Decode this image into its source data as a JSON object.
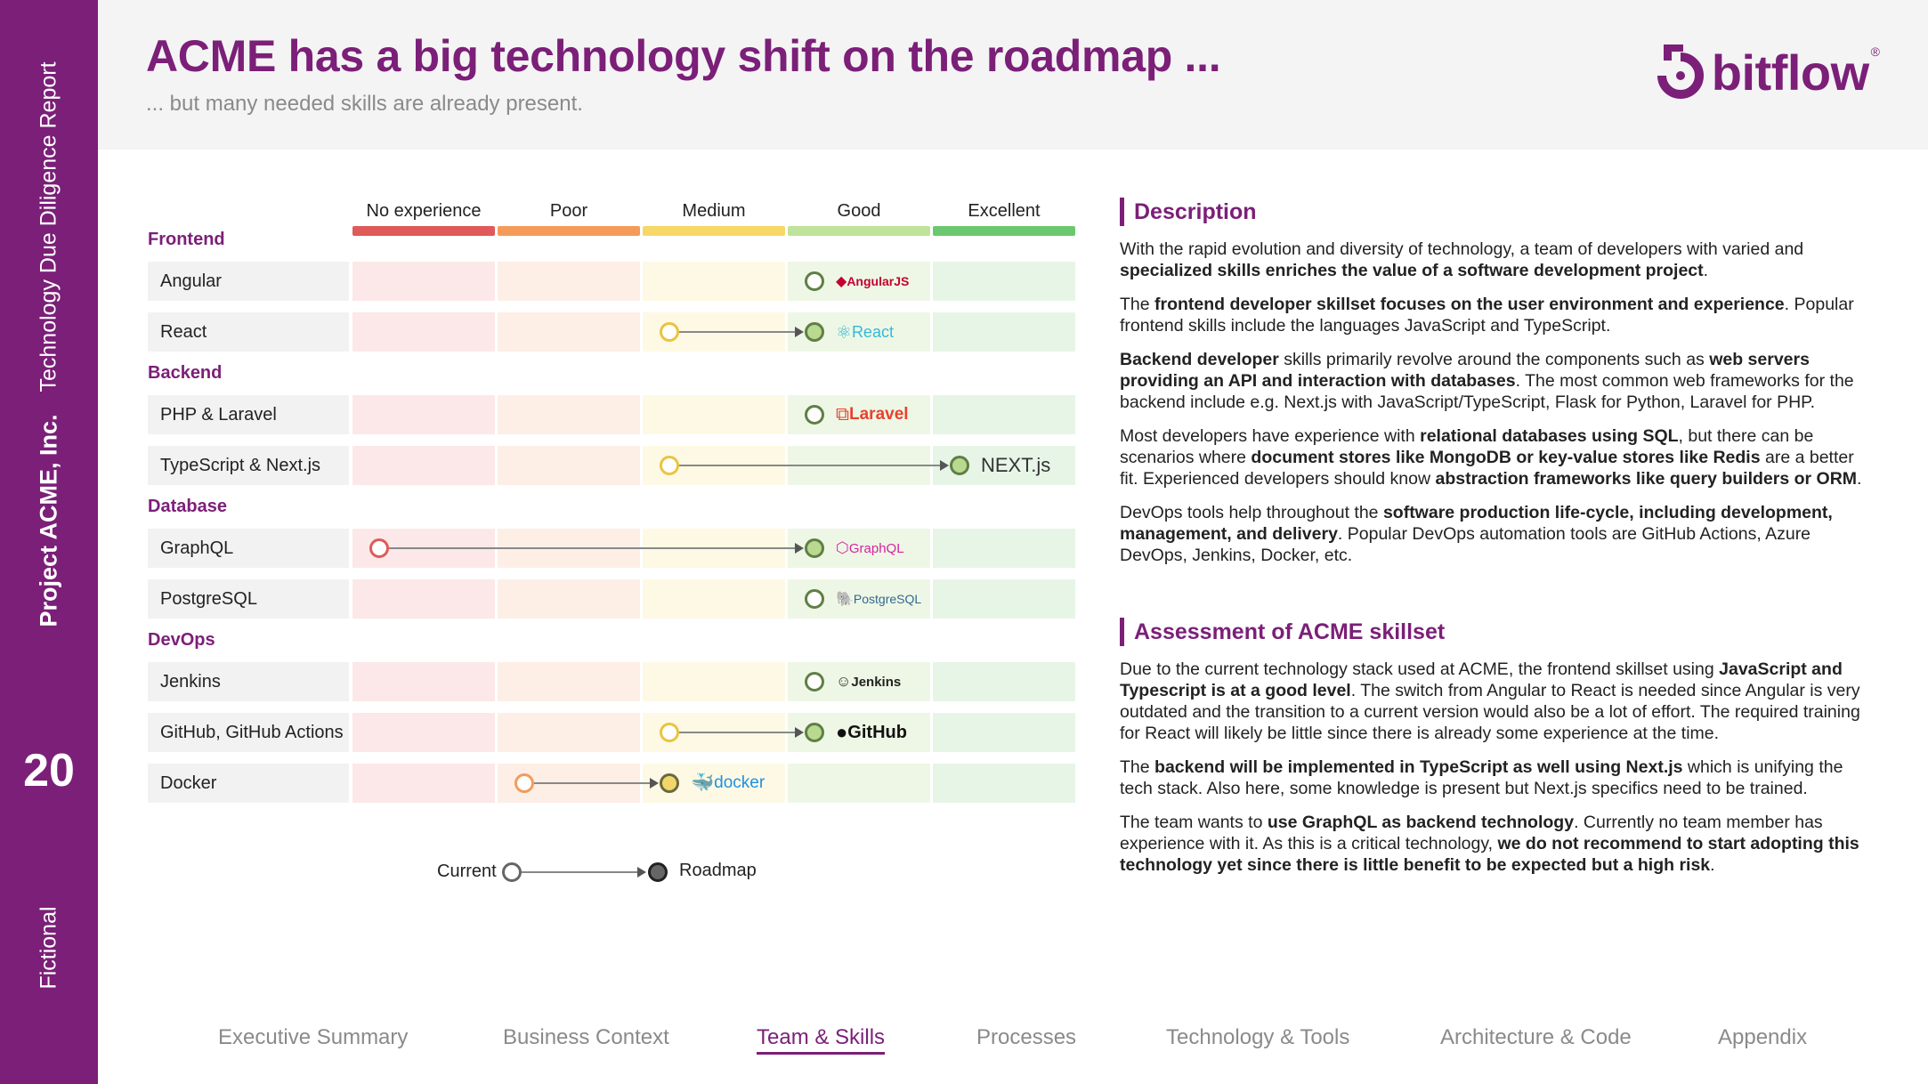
{
  "sidebar": {
    "report": "Technology Due Diligence Report",
    "project": "Project ACME, Inc.",
    "page_number": "20",
    "fictional": "Fictional"
  },
  "header": {
    "title": "ACME has a big technology shift on the roadmap ...",
    "subtitle": "... but many needed skills are already present.",
    "logo_text": "bitflow",
    "logo_reg": "®"
  },
  "colors": {
    "accent": "#7b1f78",
    "no_experience": "#e05a5a",
    "poor": "#f59b5a",
    "medium": "#f7d867",
    "good": "#bfe39a",
    "excellent": "#6cc86e"
  },
  "levels": [
    "No experience",
    "Poor",
    "Medium",
    "Good",
    "Excellent"
  ],
  "categories": [
    {
      "name": "Frontend",
      "rows": [
        {
          "label": "Angular",
          "current": 3,
          "roadmap": 3,
          "logo": "AngularJS",
          "logo_icon": "angular-icon"
        },
        {
          "label": "React",
          "current": 2,
          "roadmap": 3,
          "logo": "React",
          "logo_icon": "react-icon"
        }
      ]
    },
    {
      "name": "Backend",
      "rows": [
        {
          "label": "PHP & Laravel",
          "current": 3,
          "roadmap": 3,
          "logo": "Laravel",
          "logo_icon": "laravel-icon"
        },
        {
          "label": "TypeScript & Next.js",
          "current": 2,
          "roadmap": 4,
          "logo": "NEXT.js",
          "logo_icon": "nextjs-icon"
        }
      ]
    },
    {
      "name": "Database",
      "rows": [
        {
          "label": "GraphQL",
          "current": 0,
          "roadmap": 3,
          "logo": "GraphQL",
          "logo_icon": "graphql-icon"
        },
        {
          "label": "PostgreSQL",
          "current": 3,
          "roadmap": 3,
          "logo": "PostgreSQL",
          "logo_icon": "postgresql-icon"
        }
      ]
    },
    {
      "name": "DevOps",
      "rows": [
        {
          "label": "Jenkins",
          "current": 3,
          "roadmap": 3,
          "logo": "Jenkins",
          "logo_icon": "jenkins-icon"
        },
        {
          "label": "GitHub, GitHub Actions",
          "current": 2,
          "roadmap": 3,
          "logo": "GitHub",
          "logo_icon": "github-icon"
        },
        {
          "label": "Docker",
          "current": 1,
          "roadmap": 2,
          "logo": "docker",
          "logo_icon": "docker-icon"
        }
      ]
    }
  ],
  "legend": {
    "current": "Current",
    "roadmap": "Roadmap"
  },
  "description": {
    "heading": "Description",
    "paragraphs": [
      [
        {
          "t": "With the rapid evolution and diversity of technology, a team of developers with varied and "
        },
        {
          "t": "specialized skills enriches the value of a software development project",
          "b": true
        },
        {
          "t": "."
        }
      ],
      [
        {
          "t": "The "
        },
        {
          "t": "frontend developer skillset focuses on the user environment and experience",
          "b": true
        },
        {
          "t": ". Popular frontend skills include the languages JavaScript and TypeScript."
        }
      ],
      [
        {
          "t": "Backend developer",
          "b": true
        },
        {
          "t": " skills primarily revolve around the components such as "
        },
        {
          "t": "web servers providing an API and interaction with databases",
          "b": true
        },
        {
          "t": ". The most common web frameworks for the backend include e.g. Next.js with JavaScript/TypeScript, Flask for Python, Laravel for PHP."
        }
      ],
      [
        {
          "t": "Most developers have experience with "
        },
        {
          "t": "relational databases using SQL",
          "b": true
        },
        {
          "t": ", but there can be scenarios where "
        },
        {
          "t": "document stores like MongoDB or key-value stores like Redis",
          "b": true
        },
        {
          "t": " are a better fit. Experienced developers should know "
        },
        {
          "t": "abstraction frameworks like query builders or ORM",
          "b": true
        },
        {
          "t": "."
        }
      ],
      [
        {
          "t": "DevOps tools help throughout the "
        },
        {
          "t": "software production life-cycle, including development, management, and delivery",
          "b": true
        },
        {
          "t": ". Popular DevOps automation tools are GitHub Actions, Azure DevOps, Jenkins, Docker, etc."
        }
      ]
    ]
  },
  "assessment": {
    "heading": "Assessment of ACME skillset",
    "paragraphs": [
      [
        {
          "t": "Due to the current technology stack used at ACME, the frontend skillset using "
        },
        {
          "t": "JavaScript and Typescript is at a good level",
          "b": true
        },
        {
          "t": ". The switch from Angular to React is needed since Angular is very outdated and the transition to a current version would also be a lot of effort. The required training for React will likely be little since there is already some experience at the time."
        }
      ],
      [
        {
          "t": "The "
        },
        {
          "t": "backend will be implemented in TypeScript as well using Next.js",
          "b": true
        },
        {
          "t": " which is unifying the tech stack. Also here, some knowledge is present but Next.js specifics need to be trained."
        }
      ],
      [
        {
          "t": "The team wants to "
        },
        {
          "t": "use GraphQL as backend technology",
          "b": true
        },
        {
          "t": ". Currently no team member has experience with it. As this is a critical technology, "
        },
        {
          "t": "we do not recommend to start adopting this technology yet since there is little benefit to be expected but a high risk",
          "b": true
        },
        {
          "t": "."
        }
      ]
    ]
  },
  "nav": [
    {
      "label": "Executive Summary",
      "active": false
    },
    {
      "label": "Business Context",
      "active": false
    },
    {
      "label": "Team & Skills",
      "active": true
    },
    {
      "label": "Processes",
      "active": false
    },
    {
      "label": "Technology & Tools",
      "active": false
    },
    {
      "label": "Architecture & Code",
      "active": false
    },
    {
      "label": "Appendix",
      "active": false
    }
  ]
}
